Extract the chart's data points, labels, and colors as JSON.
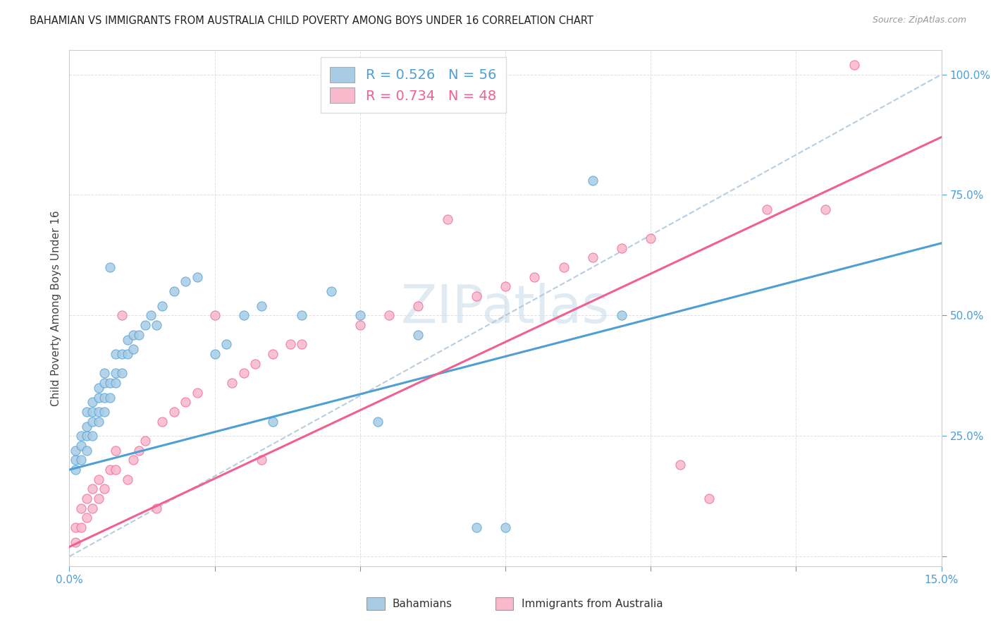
{
  "title": "BAHAMIAN VS IMMIGRANTS FROM AUSTRALIA CHILD POVERTY AMONG BOYS UNDER 16 CORRELATION CHART",
  "source": "Source: ZipAtlas.com",
  "ylabel": "Child Poverty Among Boys Under 16",
  "xlim": [
    0.0,
    0.15
  ],
  "ylim": [
    -0.02,
    1.05
  ],
  "R_blue": 0.526,
  "N_blue": 56,
  "R_pink": 0.734,
  "N_pink": 48,
  "bahamians_color": "#a8cce4",
  "australia_color": "#f9b8cc",
  "blue_line_color": "#4e9fd4",
  "pink_line_color": "#f06090",
  "dashed_color": "#b0c8dd",
  "watermark": "ZIPatlas",
  "blue_x": [
    0.001,
    0.001,
    0.001,
    0.002,
    0.002,
    0.002,
    0.003,
    0.003,
    0.003,
    0.003,
    0.004,
    0.004,
    0.004,
    0.004,
    0.005,
    0.005,
    0.005,
    0.005,
    0.006,
    0.006,
    0.006,
    0.006,
    0.007,
    0.007,
    0.007,
    0.008,
    0.008,
    0.008,
    0.009,
    0.009,
    0.01,
    0.01,
    0.011,
    0.011,
    0.012,
    0.013,
    0.014,
    0.015,
    0.016,
    0.018,
    0.02,
    0.022,
    0.025,
    0.027,
    0.03,
    0.033,
    0.035,
    0.04,
    0.045,
    0.05,
    0.053,
    0.06,
    0.07,
    0.075,
    0.09,
    0.095
  ],
  "blue_y": [
    0.18,
    0.2,
    0.22,
    0.2,
    0.23,
    0.25,
    0.22,
    0.25,
    0.27,
    0.3,
    0.25,
    0.28,
    0.3,
    0.32,
    0.28,
    0.3,
    0.33,
    0.35,
    0.3,
    0.33,
    0.36,
    0.38,
    0.33,
    0.36,
    0.6,
    0.36,
    0.38,
    0.42,
    0.38,
    0.42,
    0.42,
    0.45,
    0.43,
    0.46,
    0.46,
    0.48,
    0.5,
    0.48,
    0.52,
    0.55,
    0.57,
    0.58,
    0.42,
    0.44,
    0.5,
    0.52,
    0.28,
    0.5,
    0.55,
    0.5,
    0.28,
    0.46,
    0.06,
    0.06,
    0.78,
    0.5
  ],
  "pink_x": [
    0.001,
    0.001,
    0.002,
    0.002,
    0.003,
    0.003,
    0.004,
    0.004,
    0.005,
    0.005,
    0.006,
    0.007,
    0.008,
    0.008,
    0.009,
    0.01,
    0.011,
    0.012,
    0.013,
    0.015,
    0.016,
    0.018,
    0.02,
    0.022,
    0.025,
    0.028,
    0.03,
    0.032,
    0.033,
    0.035,
    0.038,
    0.04,
    0.05,
    0.055,
    0.06,
    0.065,
    0.07,
    0.075,
    0.08,
    0.085,
    0.09,
    0.095,
    0.1,
    0.105,
    0.11,
    0.12,
    0.13,
    0.135
  ],
  "pink_y": [
    0.03,
    0.06,
    0.06,
    0.1,
    0.08,
    0.12,
    0.1,
    0.14,
    0.12,
    0.16,
    0.14,
    0.18,
    0.18,
    0.22,
    0.5,
    0.16,
    0.2,
    0.22,
    0.24,
    0.1,
    0.28,
    0.3,
    0.32,
    0.34,
    0.5,
    0.36,
    0.38,
    0.4,
    0.2,
    0.42,
    0.44,
    0.44,
    0.48,
    0.5,
    0.52,
    0.7,
    0.54,
    0.56,
    0.58,
    0.6,
    0.62,
    0.64,
    0.66,
    0.19,
    0.12,
    0.72,
    0.72,
    1.02
  ]
}
